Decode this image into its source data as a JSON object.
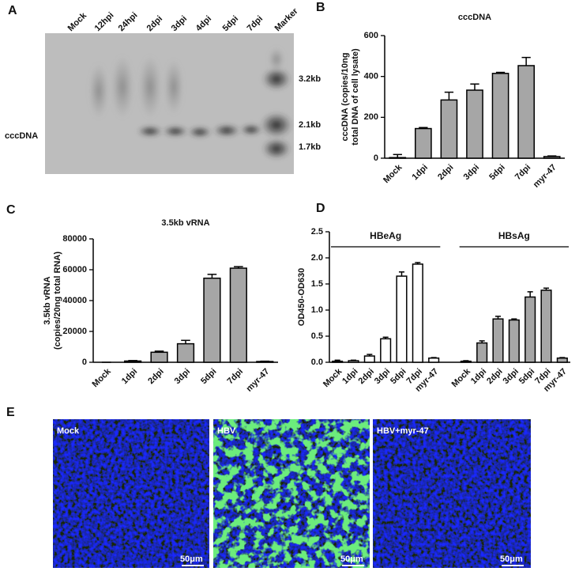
{
  "panel_labels": [
    "A",
    "B",
    "C",
    "D",
    "E"
  ],
  "blot": {
    "lanes": [
      "Mock",
      "12hpi",
      "24hpi",
      "2dpi",
      "3dpi",
      "4dpi",
      "5dpi",
      "7dpi",
      "Marker"
    ],
    "markers": [
      "3.2kb",
      "2.1kb",
      "1.7kb"
    ],
    "band_label": "cccDNA"
  },
  "chart_data": [
    {
      "type": "bar",
      "title": "cccDNA",
      "ylabel": [
        "cccDNA (copies/10ng",
        "total DNA of cell lysate)"
      ],
      "categories": [
        "Mock",
        "1dpi",
        "2dpi",
        "3dpi",
        "5dpi",
        "7dpi",
        "myr-47"
      ],
      "values": [
        3,
        145,
        285,
        333,
        415,
        453,
        8
      ],
      "errors": [
        15,
        5,
        38,
        30,
        5,
        40,
        3
      ],
      "color": "#a6a6a6",
      "ylim": [
        0,
        600
      ],
      "yticks": [
        0,
        200,
        400,
        600
      ]
    },
    {
      "type": "bar",
      "title": "3.5kb vRNA",
      "ylabel": [
        "3.5kb vRNA",
        "(copies/20ng total RNA)"
      ],
      "categories": [
        "Mock",
        "1dpi",
        "2dpi",
        "3dpi",
        "5dpi",
        "7dpi",
        "myr-47"
      ],
      "values": [
        0,
        800,
        6500,
        12000,
        54500,
        61000,
        500
      ],
      "errors": [
        0,
        300,
        700,
        2200,
        2500,
        1000,
        200
      ],
      "color": "#a6a6a6",
      "ylim": [
        0,
        80000
      ],
      "yticks": [
        0,
        20000,
        40000,
        60000,
        80000
      ]
    },
    {
      "type": "bar",
      "ylabel": [
        "OD450-OD630"
      ],
      "series": [
        {
          "name": "HBeAg",
          "color": "#ffffff",
          "categories": [
            "Mock",
            "1dpi",
            "2dpi",
            "3dpi",
            "5dpi",
            "7dpi",
            "myr-47"
          ],
          "values": [
            0.02,
            0.03,
            0.12,
            0.45,
            1.65,
            1.88,
            0.08
          ],
          "errors": [
            0.02,
            0.01,
            0.03,
            0.03,
            0.08,
            0.03,
            0.01
          ]
        },
        {
          "name": "HBsAg",
          "color": "#a6a6a6",
          "categories": [
            "Mock",
            "1dpi",
            "2dpi",
            "3dpi",
            "5dpi",
            "7dpi",
            "myr-47"
          ],
          "values": [
            0.02,
            0.37,
            0.83,
            0.81,
            1.25,
            1.38,
            0.08
          ],
          "errors": [
            0.01,
            0.04,
            0.05,
            0.02,
            0.1,
            0.04,
            0.01
          ]
        }
      ],
      "ylim": [
        0,
        2.5
      ],
      "yticks": [
        {
          "value": 0,
          "label": "0.0"
        },
        0.5,
        {
          "value": 1,
          "label": "1.0"
        },
        1.5,
        {
          "value": 2,
          "label": "2.0"
        },
        2.5
      ]
    }
  ],
  "micrographs": {
    "panels": [
      {
        "label": "Mock",
        "scale": "50μm"
      },
      {
        "label": "HBV",
        "scale": "50μm"
      },
      {
        "label": "HBV+myr-47",
        "scale": "50μm"
      }
    ]
  }
}
